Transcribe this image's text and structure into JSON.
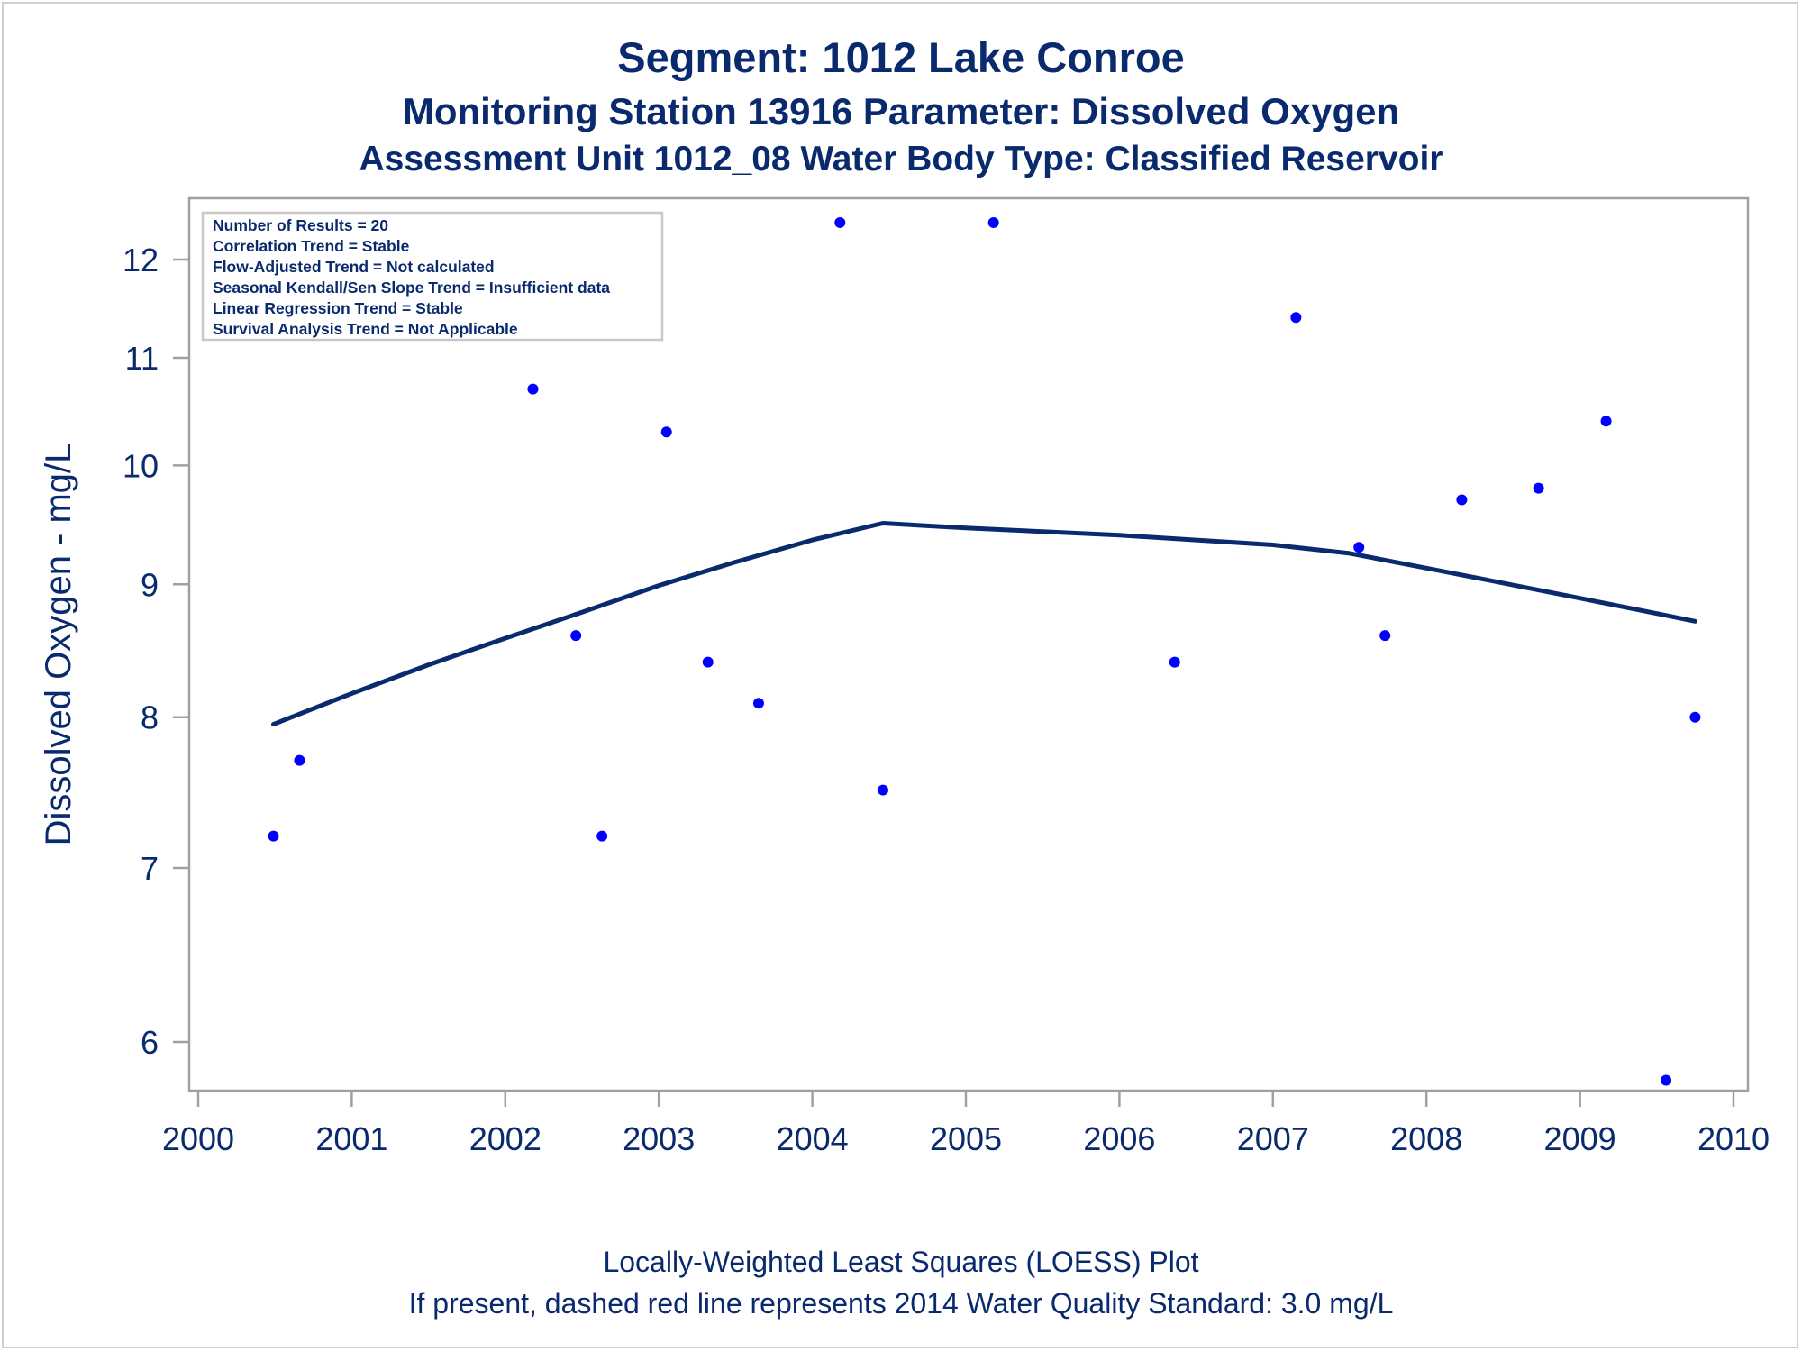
{
  "header": {
    "title": "Segment: 1012  Lake Conroe",
    "subtitle": "Monitoring Station 13916 Parameter: Dissolved Oxygen",
    "subtitle2": "Assessment Unit 1012_08   Water Body Type: Classified Reservoir"
  },
  "footer": {
    "line1": "Locally-Weighted Least Squares (LOESS) Plot",
    "line2": "If present, dashed red line represents 2014 Water Quality Standard: 3.0 mg/L"
  },
  "colors": {
    "text": "#0a2a6e",
    "points": "#0000ff",
    "loess_line": "#0a2a6e",
    "frame": "#a0a0a0",
    "info_border": "#c8c8c8"
  },
  "chart_data": {
    "type": "scatter",
    "ylabel": "Dissolved Oxygen - mg/L",
    "xlabel": "",
    "x_ticks": [
      "2000",
      "2001",
      "2002",
      "2003",
      "2004",
      "2005",
      "2006",
      "2007",
      "2008",
      "2009",
      "2010"
    ],
    "y_ticks": [
      "6",
      "7",
      "8",
      "9",
      "10",
      "11",
      "12"
    ],
    "y_scale": "log",
    "xlim": [
      2000,
      2010.1
    ],
    "ylim": [
      5.8,
      12.5
    ],
    "info_box": [
      "Number of Results = 20",
      "Correlation Trend = Stable",
      "Flow-Adjusted Trend = Not calculated",
      "Seasonal Kendall/Sen Slope Trend = Insufficient data",
      "Linear Regression Trend = Stable",
      "Survival Analysis Trend = Not Applicable"
    ],
    "series": [
      {
        "kind": "points",
        "points": [
          {
            "x": 2000.49,
            "y": 7.2
          },
          {
            "x": 2000.66,
            "y": 7.7
          },
          {
            "x": 2002.18,
            "y": 10.7
          },
          {
            "x": 2002.46,
            "y": 8.6
          },
          {
            "x": 2002.63,
            "y": 7.2
          },
          {
            "x": 2003.05,
            "y": 10.3
          },
          {
            "x": 2003.32,
            "y": 8.4
          },
          {
            "x": 2003.65,
            "y": 8.1
          },
          {
            "x": 2004.18,
            "y": 12.4
          },
          {
            "x": 2004.46,
            "y": 7.5
          },
          {
            "x": 2005.18,
            "y": 12.4
          },
          {
            "x": 2006.36,
            "y": 8.4
          },
          {
            "x": 2007.15,
            "y": 11.4
          },
          {
            "x": 2007.56,
            "y": 9.3
          },
          {
            "x": 2007.73,
            "y": 8.6
          },
          {
            "x": 2008.23,
            "y": 9.7
          },
          {
            "x": 2008.73,
            "y": 9.8
          },
          {
            "x": 2009.17,
            "y": 10.4
          },
          {
            "x": 2009.56,
            "y": 5.8
          },
          {
            "x": 2009.75,
            "y": 8.0
          }
        ]
      },
      {
        "kind": "line",
        "points": [
          {
            "x": 2000.49,
            "y": 7.95
          },
          {
            "x": 2001.0,
            "y": 8.17
          },
          {
            "x": 2001.5,
            "y": 8.38
          },
          {
            "x": 2002.0,
            "y": 8.58
          },
          {
            "x": 2002.5,
            "y": 8.78
          },
          {
            "x": 2003.0,
            "y": 8.99
          },
          {
            "x": 2003.5,
            "y": 9.18
          },
          {
            "x": 2004.0,
            "y": 9.36
          },
          {
            "x": 2004.46,
            "y": 9.5
          },
          {
            "x": 2005.0,
            "y": 9.46
          },
          {
            "x": 2005.5,
            "y": 9.43
          },
          {
            "x": 2006.0,
            "y": 9.4
          },
          {
            "x": 2006.5,
            "y": 9.36
          },
          {
            "x": 2007.0,
            "y": 9.32
          },
          {
            "x": 2007.5,
            "y": 9.25
          },
          {
            "x": 2008.0,
            "y": 9.13
          },
          {
            "x": 2008.5,
            "y": 9.01
          },
          {
            "x": 2009.0,
            "y": 8.89
          },
          {
            "x": 2009.5,
            "y": 8.77
          },
          {
            "x": 2009.75,
            "y": 8.71
          }
        ]
      }
    ]
  }
}
